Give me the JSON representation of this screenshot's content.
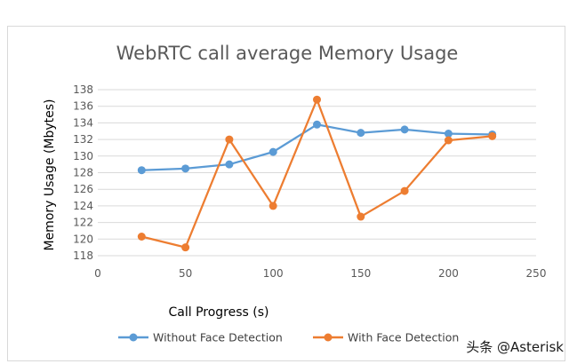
{
  "chart_data": {
    "type": "line",
    "title": "WebRTC call average Memory Usage",
    "xlabel": "Call Progress (s)",
    "ylabel": "Memory Usage (Mbytes)",
    "xlim": [
      0,
      250
    ],
    "ylim": [
      118,
      138
    ],
    "x_ticks": [
      0,
      50,
      100,
      150,
      200,
      250
    ],
    "y_ticks": [
      118,
      120,
      122,
      124,
      126,
      128,
      130,
      132,
      134,
      136,
      138
    ],
    "grid": true,
    "legend_position": "bottom",
    "x": [
      25,
      50,
      75,
      100,
      125,
      150,
      175,
      200,
      225
    ],
    "series": [
      {
        "name": "Without Face Detection",
        "color": "#5b9bd5",
        "values": [
          128.3,
          128.5,
          129.0,
          130.5,
          133.8,
          132.8,
          133.2,
          132.7,
          132.6
        ]
      },
      {
        "name": "With Face Detection",
        "color": "#ed7d31",
        "values": [
          120.3,
          119.0,
          132.0,
          124.0,
          136.8,
          122.7,
          125.8,
          131.9,
          132.4
        ]
      }
    ]
  },
  "watermark": "头条 @Asterisk"
}
